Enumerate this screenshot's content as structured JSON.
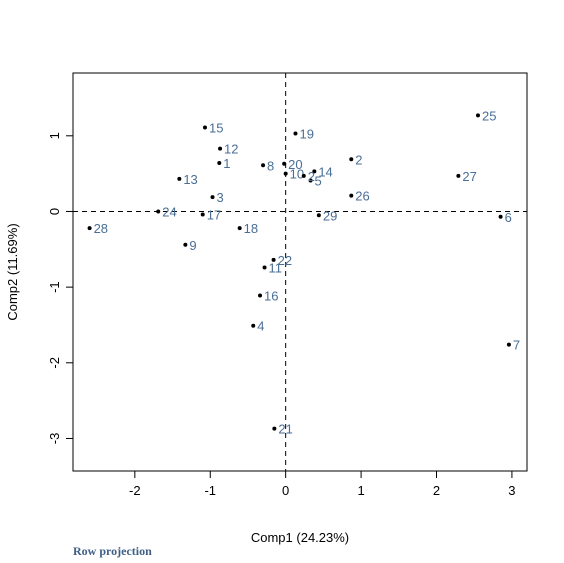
{
  "chart_data": {
    "type": "scatter",
    "xlabel": "Comp1 (24.23%)",
    "ylabel": "Comp2 (11.69%)",
    "xlim": [
      -2.82,
      3.2
    ],
    "ylim": [
      -3.43,
      1.83
    ],
    "xticks": [
      "-2",
      "-1",
      "0",
      "1",
      "2",
      "3"
    ],
    "yticks": [
      "-3",
      "-2",
      "-1",
      "0",
      "1"
    ],
    "reference_lines": {
      "x": 0,
      "y": 0,
      "style": "dashed"
    },
    "grid": false,
    "points": [
      {
        "label": "1",
        "x": -0.88,
        "y": 0.64
      },
      {
        "label": "2",
        "x": 0.87,
        "y": 0.69
      },
      {
        "label": "3",
        "x": -0.97,
        "y": 0.19
      },
      {
        "label": "4",
        "x": -0.43,
        "y": -1.51
      },
      {
        "label": "5",
        "x": 0.33,
        "y": 0.41
      },
      {
        "label": "6",
        "x": 2.85,
        "y": -0.07
      },
      {
        "label": "7",
        "x": 2.96,
        "y": -1.76
      },
      {
        "label": "8",
        "x": -0.3,
        "y": 0.61
      },
      {
        "label": "9",
        "x": -1.33,
        "y": -0.44
      },
      {
        "label": "10",
        "x": 0.0,
        "y": 0.5
      },
      {
        "label": "11",
        "x": -0.28,
        "y": -0.74
      },
      {
        "label": "12",
        "x": -0.87,
        "y": 0.83
      },
      {
        "label": "13",
        "x": -1.41,
        "y": 0.43
      },
      {
        "label": "14",
        "x": 0.38,
        "y": 0.53
      },
      {
        "label": "15",
        "x": -1.07,
        "y": 1.11
      },
      {
        "label": "16",
        "x": -0.34,
        "y": -1.11
      },
      {
        "label": "17",
        "x": -1.1,
        "y": -0.04
      },
      {
        "label": "18",
        "x": -0.61,
        "y": -0.22
      },
      {
        "label": "19",
        "x": 0.13,
        "y": 1.03
      },
      {
        "label": "20",
        "x": -0.02,
        "y": 0.63
      },
      {
        "label": "21",
        "x": -0.15,
        "y": -2.87
      },
      {
        "label": "22",
        "x": -0.16,
        "y": -0.64
      },
      {
        "label": "24",
        "x": -1.69,
        "y": 0.0
      },
      {
        "label": "25",
        "x": 2.55,
        "y": 1.27
      },
      {
        "label": "26",
        "x": 0.87,
        "y": 0.21
      },
      {
        "label": "27",
        "x": 2.29,
        "y": 0.47
      },
      {
        "label": "28",
        "x": -2.6,
        "y": -0.22
      },
      {
        "label": "29",
        "x": 0.44,
        "y": -0.05
      },
      {
        "label": "2",
        "x": 0.24,
        "y": 0.47
      }
    ]
  },
  "footer": {
    "text": "Row projection"
  }
}
